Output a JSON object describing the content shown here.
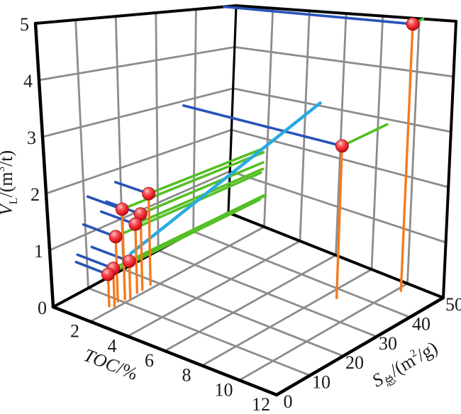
{
  "chart_data": {
    "type": "scatter",
    "subtype": "3d-scatter-with-drop-lines",
    "title": "",
    "legend": null,
    "grid": true,
    "axes": {
      "x": {
        "label": "TOC/%",
        "label_parts": [
          {
            "t": "TOC",
            "style": "italic"
          },
          {
            "t": "/%"
          }
        ],
        "range": [
          0,
          12
        ],
        "ticks": [
          0,
          2,
          4,
          6,
          8,
          10,
          12
        ],
        "tick_labels_shown": [
          "2",
          "4",
          "6",
          "8",
          "10",
          "12"
        ]
      },
      "y": {
        "label": "S总/(m²/g)",
        "label_parts": [
          {
            "t": "S",
            "style": "italic"
          },
          {
            "t": "总",
            "script": "sub"
          },
          {
            "t": "/(m"
          },
          {
            "t": "2",
            "script": "sup"
          },
          {
            "t": "/g)"
          }
        ],
        "range": [
          0,
          50
        ],
        "ticks": [
          0,
          10,
          20,
          30,
          40,
          50
        ],
        "tick_labels_shown": [
          "0",
          "10",
          "20",
          "30",
          "40",
          "50"
        ]
      },
      "z": {
        "label": "VL/(m³/t)",
        "label_parts": [
          {
            "t": "V",
            "style": "italic"
          },
          {
            "t": "L",
            "script": "sub"
          },
          {
            "t": "/(m"
          },
          {
            "t": "3",
            "script": "sup"
          },
          {
            "t": "/t)"
          }
        ],
        "range": [
          0,
          5
        ],
        "ticks": [
          0,
          1,
          2,
          3,
          4,
          5
        ],
        "tick_labels_shown": [
          "0",
          "1",
          "2",
          "3",
          "4",
          "5"
        ]
      }
    },
    "points": [
      {
        "toc": 10.2,
        "s": 47.0,
        "v": 5.0
      },
      {
        "toc": 8.5,
        "s": 37.0,
        "v": 2.9
      },
      {
        "toc": 1.75,
        "s": 18.6,
        "v": 1.76
      },
      {
        "toc": 1.8,
        "s": 11.0,
        "v": 1.68
      },
      {
        "toc": 1.8,
        "s": 16.0,
        "v": 1.45
      },
      {
        "toc": 1.8,
        "s": 14.5,
        "v": 1.3
      },
      {
        "toc": 1.7,
        "s": 9.5,
        "v": 1.2
      },
      {
        "toc": 2.0,
        "s": 11.5,
        "v": 0.72
      },
      {
        "toc": 1.9,
        "s": 7.5,
        "v": 0.7
      },
      {
        "toc": 1.7,
        "s": 7.0,
        "v": 0.58
      }
    ],
    "trend_line": {
      "from": {
        "toc": 2.0,
        "s": 12.0,
        "v": 0.85
      },
      "to": {
        "toc": 8.0,
        "s": 33.0,
        "v": 3.8
      }
    },
    "colors": {
      "point_fill": "#ec1c24",
      "point_highlight": "#ffc4c4",
      "point_edge": "#9e0b16",
      "drop_line": "#f47b20",
      "projection_left_wall": "#2953b8",
      "projection_right_wall": "#55bf25",
      "trend_line": "#29aae3",
      "grid_line": "#8c8c8c",
      "frame": "#000000",
      "text": "#1a1a1a"
    }
  }
}
